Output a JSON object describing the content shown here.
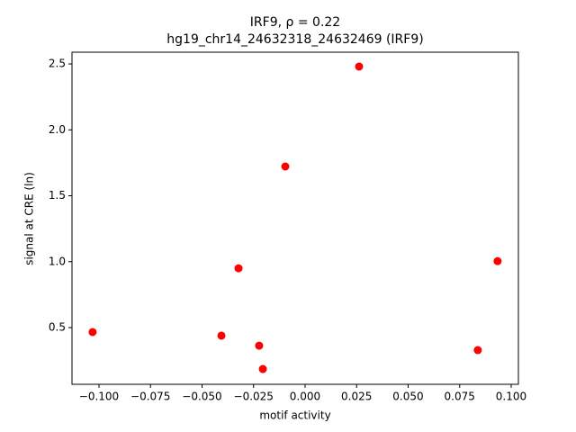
{
  "chart_data": {
    "type": "scatter",
    "title": "IRF9, ρ = 0.22",
    "subtitle": "hg19_chr14_24632318_24632469 (IRF9)",
    "x_label": "motif activity",
    "y_label": "signal at CRE (ln)",
    "color": "#ff0000",
    "series": [
      {
        "x": [
          -0.1031,
          -0.0406,
          -0.0323,
          -0.0223,
          -0.0205,
          -0.0096,
          0.0262,
          0.0838,
          0.0934
        ],
        "values": [
          0.466,
          0.439,
          0.95,
          0.363,
          0.186,
          1.722,
          2.48,
          0.329,
          1.004
        ]
      }
    ],
    "xlim": [
      -0.1131,
      0.1035
    ],
    "ylim": [
      0.07,
      2.589
    ],
    "xticks": [
      {
        "value": -0.1,
        "label": "−0.100"
      },
      {
        "value": -0.075,
        "label": "−0.075"
      },
      {
        "value": -0.05,
        "label": "−0.050"
      },
      {
        "value": -0.025,
        "label": "−0.025"
      },
      {
        "value": 0,
        "label": "0.000"
      },
      {
        "value": 0.025,
        "label": "0.025"
      },
      {
        "value": 0.05,
        "label": "0.050"
      },
      {
        "value": 0.075,
        "label": "0.075"
      },
      {
        "value": 0.1,
        "label": "0.100"
      }
    ],
    "yticks": [
      0.5,
      {
        "value": 1,
        "label": "1.0"
      },
      1.5,
      {
        "value": 2,
        "label": "2.0"
      },
      2.5
    ]
  }
}
